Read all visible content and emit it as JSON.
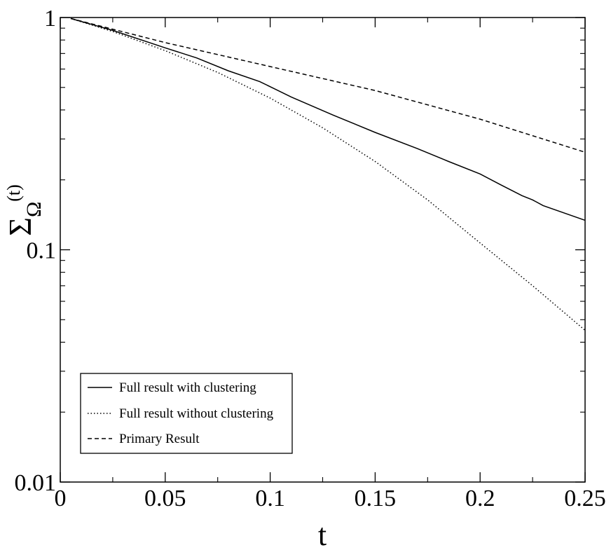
{
  "chart_data": {
    "type": "line",
    "title": "",
    "xlabel": "t",
    "ylabel": {
      "base": "Σ",
      "subscript": "Ω",
      "superscript": "(t)"
    },
    "xlim": [
      0,
      0.25
    ],
    "ylim": [
      0.01,
      1
    ],
    "yscale": "log",
    "xticks": [
      {
        "value": 0,
        "label": "0"
      },
      {
        "value": 0.05,
        "label": "0.05"
      },
      {
        "value": 0.1,
        "label": "0.1"
      },
      {
        "value": 0.15,
        "label": "0.15"
      },
      {
        "value": 0.2,
        "label": "0.2"
      },
      {
        "value": 0.25,
        "label": "0.25"
      }
    ],
    "yticks": [
      {
        "value": 0.01,
        "label": "0.01"
      },
      {
        "value": 0.1,
        "label": "0.1"
      },
      {
        "value": 1,
        "label": "1"
      }
    ],
    "grid": false,
    "legend_position": "bottom-left",
    "series": [
      {
        "name": "Full result with clustering",
        "style": "solid",
        "x": [
          0.005,
          0.025,
          0.05,
          0.065,
          0.08,
          0.095,
          0.11,
          0.13,
          0.15,
          0.17,
          0.185,
          0.2,
          0.21,
          0.22,
          0.225,
          0.23,
          0.25
        ],
        "y": [
          0.99,
          0.88,
          0.74,
          0.67,
          0.59,
          0.53,
          0.455,
          0.38,
          0.32,
          0.273,
          0.24,
          0.212,
          0.19,
          0.171,
          0.164,
          0.155,
          0.134
        ]
      },
      {
        "name": "Full result without clustering",
        "style": "dotted",
        "x": [
          0.005,
          0.025,
          0.05,
          0.075,
          0.1,
          0.125,
          0.15,
          0.175,
          0.2,
          0.225,
          0.25
        ],
        "y": [
          0.99,
          0.87,
          0.72,
          0.58,
          0.45,
          0.335,
          0.24,
          0.164,
          0.107,
          0.07,
          0.045
        ]
      },
      {
        "name": "Primary Result",
        "style": "dashed",
        "x": [
          0.005,
          0.05,
          0.1,
          0.15,
          0.2,
          0.25
        ],
        "y": [
          0.99,
          0.78,
          0.615,
          0.485,
          0.365,
          0.263
        ]
      }
    ]
  }
}
